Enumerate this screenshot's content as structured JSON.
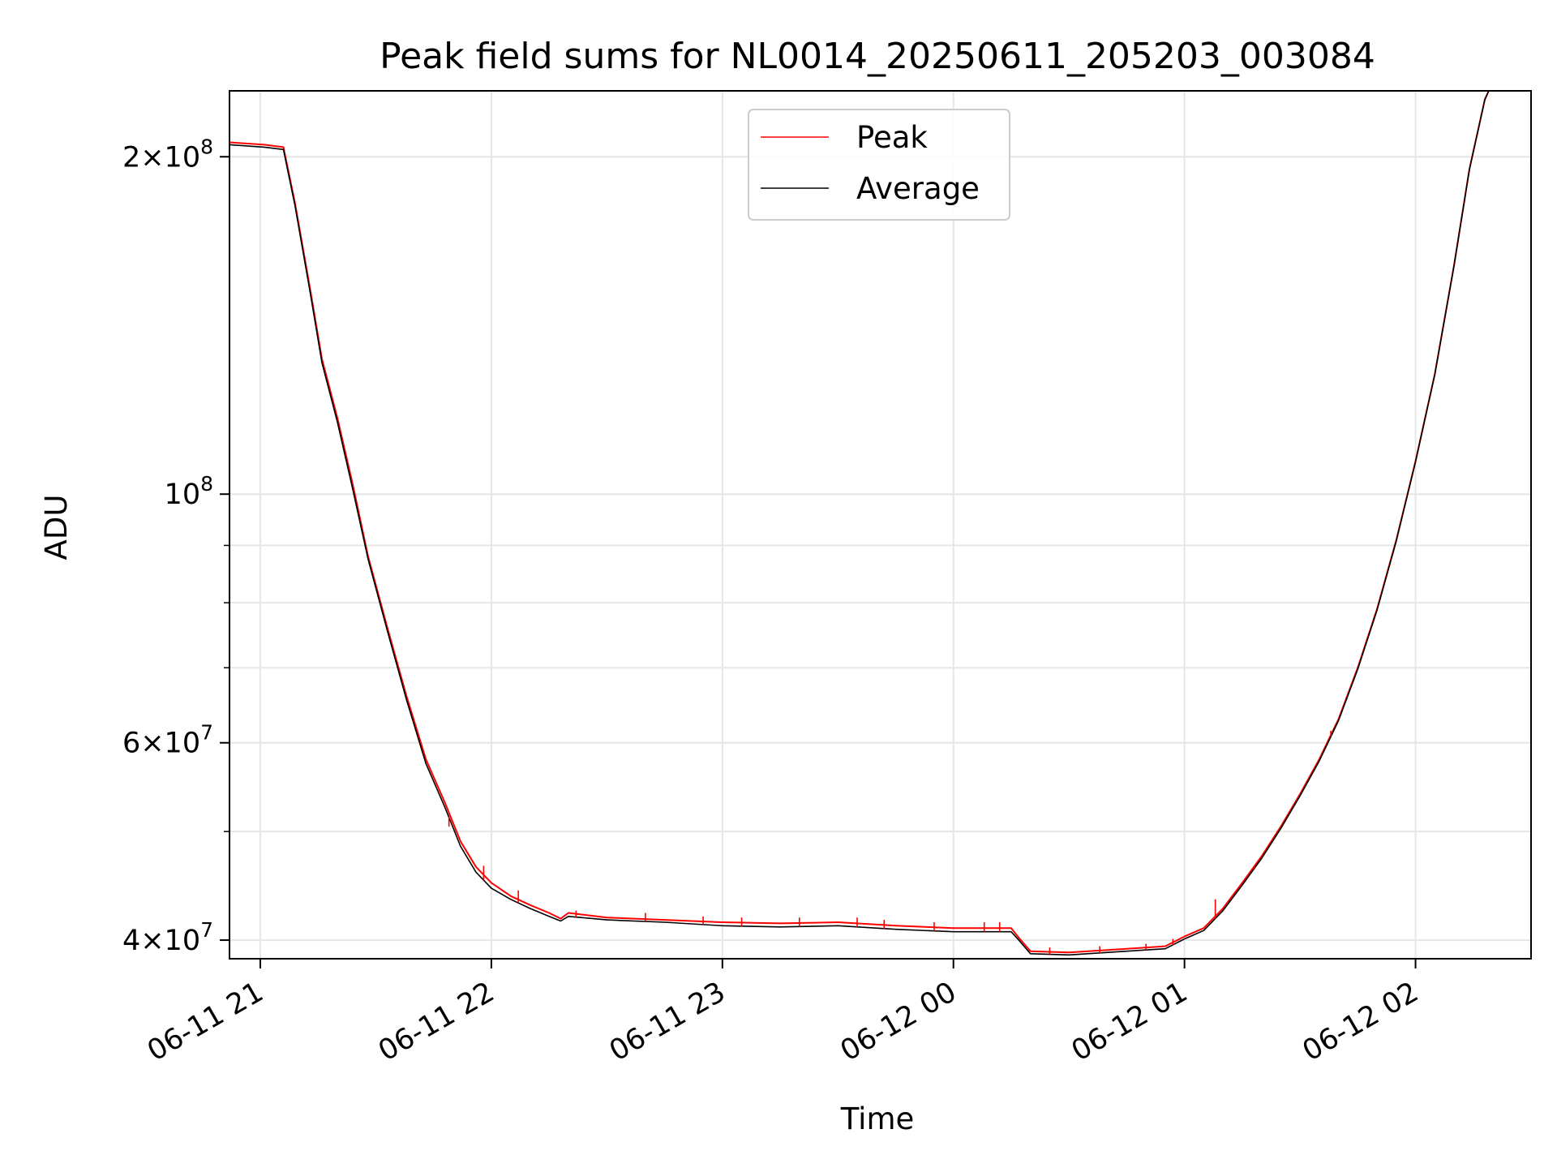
{
  "chart_data": {
    "type": "line",
    "title": "Peak field sums for NL0014_20250611_205203_003084",
    "xlabel": "Time",
    "ylabel": "ADU",
    "yscale": "log",
    "ylim": [
      38500000,
      229000000
    ],
    "xlim": [
      "2025-06-11 20:52",
      "2025-06-12 02:30"
    ],
    "grid": true,
    "legend_position": "upper center",
    "x_ticks": [
      {
        "t": "2025-06-11 21:00",
        "label": "06-11 21"
      },
      {
        "t": "2025-06-11 22:00",
        "label": "06-11 22"
      },
      {
        "t": "2025-06-11 23:00",
        "label": "06-11 23"
      },
      {
        "t": "2025-06-12 00:00",
        "label": "06-12 00"
      },
      {
        "t": "2025-06-12 01:00",
        "label": "06-12 01"
      },
      {
        "t": "2025-06-12 02:00",
        "label": "06-12 02"
      }
    ],
    "y_ticks": [
      {
        "value": 40000000,
        "mantissa": "4",
        "exp": "7"
      },
      {
        "value": 60000000,
        "mantissa": "6",
        "exp": "7"
      },
      {
        "value": 100000000,
        "mantissa": "",
        "exp": "8"
      },
      {
        "value": 200000000,
        "mantissa": "2",
        "exp": "8"
      }
    ],
    "y_minor_ticks": [
      50000000,
      70000000,
      80000000,
      90000000
    ],
    "series": [
      {
        "name": "Peak",
        "color": "#ff0000",
        "points": [
          [
            "2025-06-11 20:52",
            206000000
          ],
          [
            "2025-06-11 21:01",
            205000000
          ],
          [
            "2025-06-11 21:06",
            204000000
          ],
          [
            "2025-06-11 21:09",
            182000000
          ],
          [
            "2025-06-11 21:13",
            152000000
          ],
          [
            "2025-06-11 21:16",
            132000000
          ],
          [
            "2025-06-11 21:20",
            117000000
          ],
          [
            "2025-06-11 21:24",
            102000000
          ],
          [
            "2025-06-11 21:28",
            88000000
          ],
          [
            "2025-06-11 21:33",
            76000000
          ],
          [
            "2025-06-11 21:38",
            66000000
          ],
          [
            "2025-06-11 21:43",
            58000000
          ],
          [
            "2025-06-11 21:48",
            53000000
          ],
          [
            "2025-06-11 21:52",
            49000000
          ],
          [
            "2025-06-11 21:56",
            46500000
          ],
          [
            "2025-06-11 22:00",
            45000000
          ],
          [
            "2025-06-11 22:05",
            43800000
          ],
          [
            "2025-06-11 22:10",
            43000000
          ],
          [
            "2025-06-11 22:15",
            42300000
          ],
          [
            "2025-06-11 22:18",
            41800000
          ],
          [
            "2025-06-11 22:20",
            42300000
          ],
          [
            "2025-06-11 22:30",
            41900000
          ],
          [
            "2025-06-11 22:45",
            41700000
          ],
          [
            "2025-06-11 23:00",
            41500000
          ],
          [
            "2025-06-11 23:15",
            41400000
          ],
          [
            "2025-06-11 23:30",
            41500000
          ],
          [
            "2025-06-11 23:45",
            41200000
          ],
          [
            "2025-06-12 00:00",
            41000000
          ],
          [
            "2025-06-12 00:15",
            41000000
          ],
          [
            "2025-06-12 00:17",
            40200000
          ],
          [
            "2025-06-12 00:20",
            39100000
          ],
          [
            "2025-06-12 00:30",
            39000000
          ],
          [
            "2025-06-12 00:45",
            39300000
          ],
          [
            "2025-06-12 00:55",
            39500000
          ],
          [
            "2025-06-12 01:00",
            40300000
          ],
          [
            "2025-06-12 01:05",
            41000000
          ],
          [
            "2025-06-12 01:10",
            42700000
          ],
          [
            "2025-06-12 01:15",
            45000000
          ],
          [
            "2025-06-12 01:20",
            47500000
          ],
          [
            "2025-06-12 01:25",
            50500000
          ],
          [
            "2025-06-12 01:30",
            54000000
          ],
          [
            "2025-06-12 01:35",
            58000000
          ],
          [
            "2025-06-12 01:40",
            63000000
          ],
          [
            "2025-06-12 01:45",
            70000000
          ],
          [
            "2025-06-12 01:50",
            79000000
          ],
          [
            "2025-06-12 01:55",
            91000000
          ],
          [
            "2025-06-12 02:00",
            107000000
          ],
          [
            "2025-06-12 02:05",
            128000000
          ],
          [
            "2025-06-12 02:10",
            160000000
          ],
          [
            "2025-06-12 02:14",
            195000000
          ],
          [
            "2025-06-12 02:18",
            225000000
          ],
          [
            "2025-06-12 02:19",
            229000000
          ]
        ]
      },
      {
        "name": "Average",
        "color": "#000000",
        "points": [
          [
            "2025-06-11 20:52",
            205000000
          ],
          [
            "2025-06-11 21:01",
            204000000
          ],
          [
            "2025-06-11 21:06",
            203000000
          ],
          [
            "2025-06-11 21:09",
            181000000
          ],
          [
            "2025-06-11 21:13",
            151000000
          ],
          [
            "2025-06-11 21:16",
            131000000
          ],
          [
            "2025-06-11 21:20",
            116000000
          ],
          [
            "2025-06-11 21:24",
            101000000
          ],
          [
            "2025-06-11 21:28",
            87500000
          ],
          [
            "2025-06-11 21:33",
            75500000
          ],
          [
            "2025-06-11 21:38",
            65500000
          ],
          [
            "2025-06-11 21:43",
            57500000
          ],
          [
            "2025-06-11 21:48",
            52500000
          ],
          [
            "2025-06-11 21:52",
            48500000
          ],
          [
            "2025-06-11 21:56",
            46000000
          ],
          [
            "2025-06-11 22:00",
            44500000
          ],
          [
            "2025-06-11 22:05",
            43500000
          ],
          [
            "2025-06-11 22:10",
            42700000
          ],
          [
            "2025-06-11 22:15",
            42000000
          ],
          [
            "2025-06-11 22:18",
            41600000
          ],
          [
            "2025-06-11 22:20",
            42000000
          ],
          [
            "2025-06-11 22:30",
            41700000
          ],
          [
            "2025-06-11 22:45",
            41500000
          ],
          [
            "2025-06-11 23:00",
            41200000
          ],
          [
            "2025-06-11 23:15",
            41100000
          ],
          [
            "2025-06-11 23:30",
            41200000
          ],
          [
            "2025-06-11 23:45",
            40900000
          ],
          [
            "2025-06-12 00:00",
            40700000
          ],
          [
            "2025-06-12 00:15",
            40700000
          ],
          [
            "2025-06-12 00:17",
            40000000
          ],
          [
            "2025-06-12 00:20",
            38900000
          ],
          [
            "2025-06-12 00:30",
            38800000
          ],
          [
            "2025-06-12 00:45",
            39100000
          ],
          [
            "2025-06-12 00:55",
            39300000
          ],
          [
            "2025-06-12 01:00",
            40100000
          ],
          [
            "2025-06-12 01:05",
            40800000
          ],
          [
            "2025-06-12 01:10",
            42500000
          ],
          [
            "2025-06-12 01:15",
            44800000
          ],
          [
            "2025-06-12 01:20",
            47300000
          ],
          [
            "2025-06-12 01:25",
            50300000
          ],
          [
            "2025-06-12 01:30",
            53800000
          ],
          [
            "2025-06-12 01:35",
            57800000
          ],
          [
            "2025-06-12 01:40",
            62800000
          ],
          [
            "2025-06-12 01:45",
            69800000
          ],
          [
            "2025-06-12 01:50",
            78800000
          ],
          [
            "2025-06-12 01:55",
            90800000
          ],
          [
            "2025-06-12 02:00",
            106800000
          ],
          [
            "2025-06-12 02:05",
            127800000
          ],
          [
            "2025-06-12 02:10",
            159800000
          ],
          [
            "2025-06-12 02:14",
            194800000
          ],
          [
            "2025-06-12 02:18",
            224800000
          ],
          [
            "2025-06-12 02:19",
            229000000
          ]
        ]
      }
    ],
    "spikes": [
      [
        "2025-06-11 21:49",
        50500000
      ],
      [
        "2025-06-11 21:58",
        46600000
      ],
      [
        "2025-06-11 22:07",
        44300000
      ],
      [
        "2025-06-11 22:22",
        42500000
      ],
      [
        "2025-06-11 22:40",
        42300000
      ],
      [
        "2025-06-11 22:55",
        42000000
      ],
      [
        "2025-06-11 23:05",
        41900000
      ],
      [
        "2025-06-11 23:20",
        41900000
      ],
      [
        "2025-06-11 23:35",
        41900000
      ],
      [
        "2025-06-11 23:42",
        41700000
      ],
      [
        "2025-06-11 23:55",
        41500000
      ],
      [
        "2025-06-12 00:08",
        41500000
      ],
      [
        "2025-06-12 00:12",
        41500000
      ],
      [
        "2025-06-12 00:25",
        39400000
      ],
      [
        "2025-06-12 00:38",
        39500000
      ],
      [
        "2025-06-12 00:50",
        39700000
      ],
      [
        "2025-06-12 00:57",
        40100000
      ],
      [
        "2025-06-12 01:08",
        43500000
      ],
      [
        "2025-06-12 01:18",
        46500000
      ],
      [
        "2025-06-12 01:38",
        61500000
      ]
    ]
  }
}
